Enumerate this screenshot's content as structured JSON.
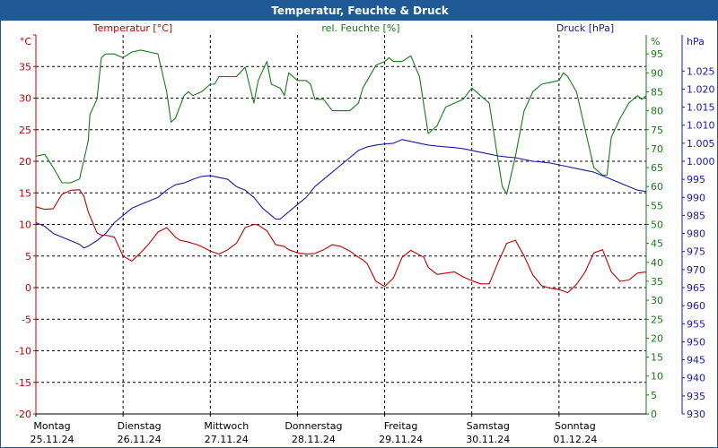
{
  "title": "Temperatur, Feuchte & Druck",
  "colors": {
    "temp": "#c00000",
    "hum": "#1a7a1a",
    "press": "#1a1aa6",
    "title_bg": "#1f5a96"
  },
  "chart_data": {
    "type": "line",
    "title": "Temperatur, Feuchte & Druck",
    "x_labels": [
      {
        "day": "Montag",
        "date": "25.11.24"
      },
      {
        "day": "Dienstag",
        "date": "26.11.24"
      },
      {
        "day": "Mittwoch",
        "date": "27.11.24"
      },
      {
        "day": "Donnerstag",
        "date": "28.11.24"
      },
      {
        "day": "Freitag",
        "date": "29.11.24"
      },
      {
        "day": "Samstag",
        "date": "30.11.24"
      },
      {
        "day": "Sonntag",
        "date": "01.12.24"
      }
    ],
    "x_range_days": [
      0,
      7
    ],
    "axes": {
      "temp": {
        "label": "Temperatur [°C]",
        "unit": "°C",
        "ylim": [
          -20,
          40
        ],
        "ticks": [
          "40",
          "35",
          "30",
          "25",
          "20",
          "15",
          "10",
          "5",
          "0",
          "-5",
          "-10",
          "-15",
          "-20"
        ]
      },
      "hum": {
        "label": "rel. Feuchte [%]",
        "unit": "%",
        "ylim": [
          0,
          100
        ],
        "ticks": [
          "95",
          "90",
          "85",
          "80",
          "75",
          "70",
          "65",
          "60",
          "55",
          "50",
          "45",
          "40",
          "35",
          "30",
          "25",
          "20",
          "15",
          "10",
          "5",
          "0"
        ]
      },
      "press": {
        "label": "Druck [hPa]",
        "unit": "hPa",
        "ylim": [
          930,
          1035
        ],
        "ticks": [
          "1.025",
          "1.020",
          "1.015",
          "1.010",
          "1.005",
          "1.000",
          "995",
          "990",
          "985",
          "980",
          "975",
          "970",
          "965",
          "960",
          "955",
          "950",
          "945",
          "940",
          "935",
          "930"
        ]
      }
    },
    "series": [
      {
        "name": "Temperatur",
        "axis": "temp",
        "x": [
          0,
          0.1,
          0.2,
          0.3,
          0.4,
          0.5,
          0.55,
          0.6,
          0.7,
          0.75,
          0.8,
          0.9,
          1.0,
          1.1,
          1.2,
          1.3,
          1.4,
          1.5,
          1.6,
          1.65,
          1.75,
          1.85,
          1.9,
          2.0,
          2.1,
          2.2,
          2.3,
          2.4,
          2.5,
          2.55,
          2.65,
          2.75,
          2.85,
          2.9,
          3.0,
          3.1,
          3.2,
          3.3,
          3.4,
          3.5,
          3.6,
          3.7,
          3.75,
          3.8,
          3.9,
          4.0,
          4.1,
          4.2,
          4.3,
          4.45,
          4.5,
          4.6,
          4.7,
          4.8,
          4.9,
          5.0,
          5.1,
          5.2,
          5.3,
          5.4,
          5.5,
          5.6,
          5.7,
          5.8,
          5.9,
          6.0,
          6.1,
          6.2,
          6.3,
          6.4,
          6.5,
          6.6,
          6.7,
          6.8,
          6.9,
          7.0
        ],
        "values": [
          12.8,
          12.4,
          12.5,
          14.8,
          15.4,
          15.5,
          14.5,
          12.0,
          8.7,
          8.3,
          8.3,
          8.0,
          5.0,
          4.2,
          5.5,
          7.0,
          8.8,
          9.5,
          8.0,
          7.5,
          7.2,
          6.8,
          6.5,
          5.8,
          5.3,
          6.0,
          7.0,
          9.5,
          10.0,
          9.9,
          9.0,
          6.8,
          6.5,
          6.0,
          5.5,
          5.3,
          5.4,
          6.0,
          6.8,
          6.5,
          5.8,
          4.8,
          4.4,
          3.8,
          1.0,
          0.2,
          1.5,
          4.8,
          5.9,
          4.8,
          3.2,
          2.1,
          2.3,
          2.5,
          1.7,
          1.1,
          0.6,
          0.6,
          4.0,
          7.0,
          7.5,
          5.0,
          2.0,
          0.3,
          -0.1,
          -0.3,
          -0.8,
          0.5,
          2.5,
          5.5,
          6.0,
          2.5,
          1.0,
          1.2,
          2.3,
          2.5
        ]
      },
      {
        "name": "rel. Feuchte",
        "axis": "hum",
        "x": [
          0,
          0.1,
          0.2,
          0.3,
          0.4,
          0.5,
          0.6,
          0.62,
          0.7,
          0.75,
          0.8,
          0.9,
          1.0,
          1.1,
          1.2,
          1.3,
          1.4,
          1.5,
          1.55,
          1.6,
          1.7,
          1.75,
          1.8,
          1.9,
          2.0,
          2.05,
          2.1,
          2.2,
          2.3,
          2.4,
          2.5,
          2.55,
          2.65,
          2.7,
          2.8,
          2.85,
          2.9,
          3.0,
          3.1,
          3.15,
          3.2,
          3.3,
          3.4,
          3.5,
          3.6,
          3.7,
          3.75,
          3.8,
          3.9,
          4.0,
          4.05,
          4.1,
          4.2,
          4.3,
          4.4,
          4.5,
          4.6,
          4.7,
          4.8,
          4.9,
          5.0,
          5.05,
          5.1,
          5.2,
          5.3,
          5.35,
          5.4,
          5.5,
          5.6,
          5.7,
          5.8,
          5.9,
          6.0,
          6.05,
          6.1,
          6.2,
          6.3,
          6.4,
          6.5,
          6.55,
          6.6,
          6.7,
          6.8,
          6.9,
          6.95,
          7.0
        ],
        "values": [
          68,
          68.5,
          65,
          61,
          61,
          62,
          72,
          79,
          83,
          94,
          95,
          95,
          94,
          95.5,
          96,
          95.5,
          95,
          85,
          77,
          78,
          84,
          85,
          84,
          85,
          87,
          87,
          89,
          89,
          89,
          91.5,
          82,
          88,
          93,
          87,
          86,
          84,
          90,
          88,
          88,
          87,
          83,
          83,
          80,
          80,
          80,
          82,
          86,
          88,
          92,
          93,
          94,
          93,
          93,
          94.5,
          89,
          74,
          76,
          81,
          82,
          83,
          86,
          85,
          84,
          82,
          67,
          60,
          58,
          68,
          80,
          85,
          87,
          87.5,
          88,
          90,
          89,
          85,
          75,
          65,
          63,
          63,
          73,
          78,
          82,
          84,
          83,
          84
        ]
      },
      {
        "name": "Druck",
        "axis": "press",
        "x": [
          0,
          0.1,
          0.2,
          0.3,
          0.4,
          0.5,
          0.55,
          0.6,
          0.7,
          0.8,
          0.9,
          1.0,
          1.1,
          1.2,
          1.3,
          1.4,
          1.5,
          1.6,
          1.7,
          1.8,
          1.9,
          2.0,
          2.1,
          2.2,
          2.3,
          2.4,
          2.5,
          2.6,
          2.7,
          2.75,
          2.8,
          2.9,
          3.0,
          3.1,
          3.2,
          3.3,
          3.4,
          3.5,
          3.6,
          3.7,
          3.8,
          3.9,
          4.0,
          4.1,
          4.2,
          4.3,
          4.4,
          4.5,
          4.6,
          4.7,
          4.8,
          4.9,
          5.0,
          5.1,
          5.2,
          5.3,
          5.4,
          5.5,
          5.6,
          5.7,
          5.8,
          5.9,
          6.0,
          6.1,
          6.2,
          6.3,
          6.4,
          6.5,
          6.6,
          6.7,
          6.8,
          6.9,
          7.0
        ],
        "values": [
          983,
          982,
          980,
          979,
          978,
          977,
          976,
          976.5,
          978,
          980,
          983,
          985,
          987,
          988,
          989,
          990,
          992,
          993.5,
          994,
          995,
          995.8,
          996,
          995.5,
          995,
          993,
          992,
          990,
          987,
          985,
          984,
          984,
          986,
          988,
          990,
          993,
          995,
          997,
          999,
          1001,
          1003,
          1004,
          1004.5,
          1004.8,
          1005,
          1006,
          1005.5,
          1005,
          1004.5,
          1004.2,
          1004,
          1003.8,
          1003.5,
          1003,
          1002.5,
          1002,
          1001.5,
          1001.2,
          1001,
          1000.5,
          1000,
          999.8,
          999.5,
          999,
          998.5,
          998,
          997.5,
          997,
          996,
          995,
          994,
          993,
          992,
          991.6
        ]
      }
    ]
  }
}
